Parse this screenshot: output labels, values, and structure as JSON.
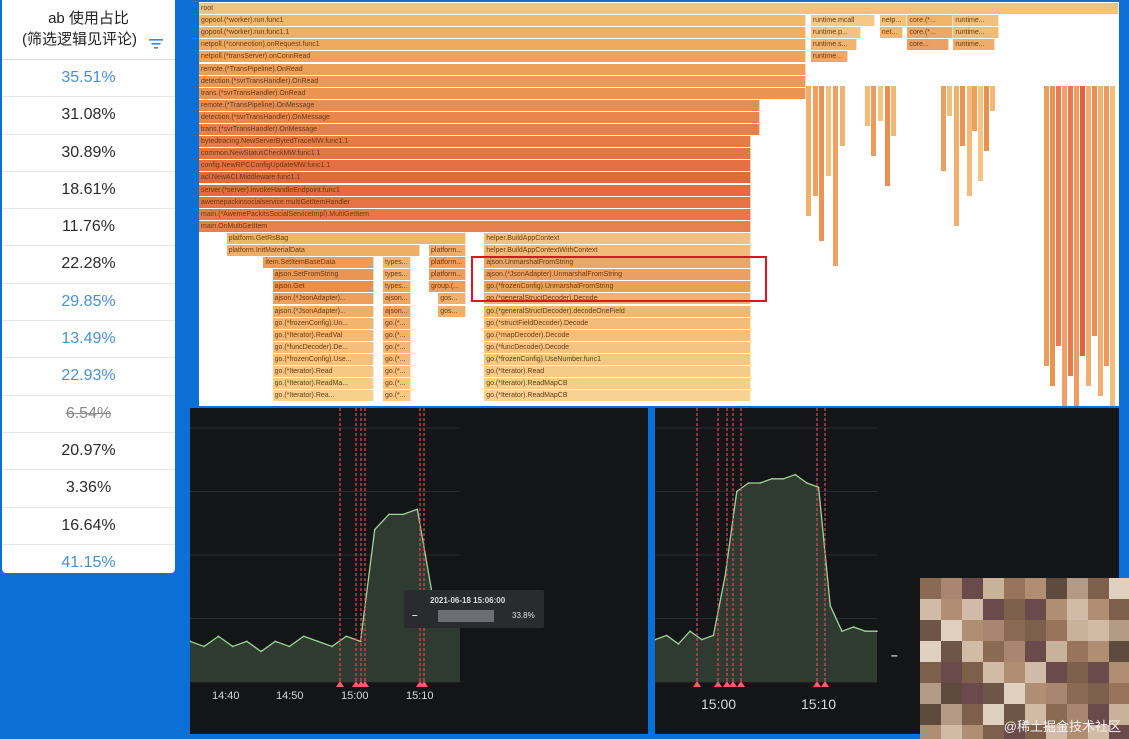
{
  "table": {
    "header_line1": "ab 使用占比",
    "header_line2": "(筛选逻辑见评论)",
    "rows": [
      {
        "value": "35.51%",
        "style": "link"
      },
      {
        "value": "31.08%",
        "style": "normal"
      },
      {
        "value": "30.89%",
        "style": "normal"
      },
      {
        "value": "18.61%",
        "style": "normal"
      },
      {
        "value": "11.76%",
        "style": "normal"
      },
      {
        "value": "22.28%",
        "style": "normal"
      },
      {
        "value": "29.85%",
        "style": "link"
      },
      {
        "value": "13.49%",
        "style": "link"
      },
      {
        "value": "22.93%",
        "style": "link"
      },
      {
        "value": "6.54%",
        "style": "strike"
      },
      {
        "value": "20.97%",
        "style": "normal"
      },
      {
        "value": "3.36%",
        "style": "normal"
      },
      {
        "value": "16.64%",
        "style": "normal"
      },
      {
        "value": "41.15%",
        "style": "link"
      }
    ]
  },
  "flamegraph": {
    "frames": [
      {
        "label": "root",
        "depth": 0,
        "start": 0.0,
        "end": 1.0,
        "color": "#f3c37a"
      },
      {
        "label": "gopool.(*worker).run.func1",
        "depth": 1,
        "start": 0.0,
        "end": 0.66,
        "color": "#f0b86a"
      },
      {
        "label": "runtime.mcall",
        "depth": 1,
        "start": 0.665,
        "end": 0.735,
        "color": "#f4c886"
      },
      {
        "label": "netp...",
        "depth": 1,
        "start": 0.74,
        "end": 0.77,
        "color": "#f2c17a"
      },
      {
        "label": "core.(*...",
        "depth": 1,
        "start": 0.77,
        "end": 0.82,
        "color": "#f0b36a"
      },
      {
        "label": "runtime...",
        "depth": 1,
        "start": 0.82,
        "end": 0.87,
        "color": "#f3c07c"
      },
      {
        "label": "gopool.(*worker).run.func1.1",
        "depth": 2,
        "start": 0.0,
        "end": 0.66,
        "color": "#efb064"
      },
      {
        "label": "runtime.p...",
        "depth": 2,
        "start": 0.665,
        "end": 0.72,
        "color": "#f4c37e"
      },
      {
        "label": "net...",
        "depth": 2,
        "start": 0.74,
        "end": 0.765,
        "color": "#f0b774"
      },
      {
        "label": "core.(*...",
        "depth": 2,
        "start": 0.77,
        "end": 0.82,
        "color": "#eea866"
      },
      {
        "label": "runtime...",
        "depth": 2,
        "start": 0.82,
        "end": 0.87,
        "color": "#f1bb74"
      },
      {
        "label": "netpoll.(*connection).onRequest.func1",
        "depth": 3,
        "start": 0.0,
        "end": 0.66,
        "color": "#eeab60"
      },
      {
        "label": "runtime.s...",
        "depth": 3,
        "start": 0.665,
        "end": 0.715,
        "color": "#f0b470"
      },
      {
        "label": "core...",
        "depth": 3,
        "start": 0.77,
        "end": 0.815,
        "color": "#eca063"
      },
      {
        "label": "runtime...",
        "depth": 3,
        "start": 0.82,
        "end": 0.865,
        "color": "#efad6b"
      },
      {
        "label": "netpoll.(*transServer).onConnRead",
        "depth": 4,
        "start": 0.0,
        "end": 0.66,
        "color": "#eda55c"
      },
      {
        "label": "runtime...",
        "depth": 4,
        "start": 0.665,
        "end": 0.705,
        "color": "#eea66a"
      },
      {
        "label": "remote.(*TransPipeline).OnRead",
        "depth": 5,
        "start": 0.0,
        "end": 0.66,
        "color": "#ec9f58"
      },
      {
        "label": "detection.(*svrTransHandler).OnRead",
        "depth": 6,
        "start": 0.0,
        "end": 0.66,
        "color": "#eb9955"
      },
      {
        "label": "trans.(*svrTransHandler).OnRead",
        "depth": 7,
        "start": 0.0,
        "end": 0.66,
        "color": "#ea9352"
      },
      {
        "label": "remote.(*TransPipeline).OnMessage",
        "depth": 8,
        "start": 0.0,
        "end": 0.61,
        "color": "#e98d4f"
      },
      {
        "label": "detection.(*svrTransHandler).OnMessage",
        "depth": 9,
        "start": 0.0,
        "end": 0.61,
        "color": "#e8874c"
      },
      {
        "label": "trans.(*svrTransHandler).OnMessage",
        "depth": 10,
        "start": 0.0,
        "end": 0.61,
        "color": "#e78149"
      },
      {
        "label": "bytedtracing.NewServerBytedTraceMW.func1.1",
        "depth": 11,
        "start": 0.0,
        "end": 0.6,
        "color": "#e67b46"
      },
      {
        "label": "common.NewStatusCheckMW.func1.1",
        "depth": 12,
        "start": 0.0,
        "end": 0.6,
        "color": "#e57543"
      },
      {
        "label": "config.NewRPCConfigUpdateMW.func1.1",
        "depth": 13,
        "start": 0.0,
        "end": 0.6,
        "color": "#e46f40"
      },
      {
        "label": "acl.NewACLMiddleware.func1.1",
        "depth": 14,
        "start": 0.0,
        "end": 0.6,
        "color": "#e3693d"
      },
      {
        "label": "server.(*server).invokeHandleEndpoint.func1",
        "depth": 15,
        "start": 0.0,
        "end": 0.6,
        "color": "#e46d40"
      },
      {
        "label": "awemepackinsocialservice.multiGetItemHandler",
        "depth": 16,
        "start": 0.0,
        "end": 0.6,
        "color": "#e57345"
      },
      {
        "label": "main.(*AwemePackItsSocialServiceImpl).MultiGetItem",
        "depth": 17,
        "start": 0.0,
        "end": 0.6,
        "color": "#e67948"
      },
      {
        "label": "main.OnMultiGetItem",
        "depth": 18,
        "start": 0.0,
        "end": 0.6,
        "color": "#e7804c"
      },
      {
        "label": "platform.GetRsBag",
        "depth": 19,
        "start": 0.03,
        "end": 0.29,
        "color": "#f0b56c"
      },
      {
        "label": "helper.BuildAppContext",
        "depth": 19,
        "start": 0.31,
        "end": 0.6,
        "color": "#f2c080"
      },
      {
        "label": "platform.InitMaterialData",
        "depth": 20,
        "start": 0.03,
        "end": 0.24,
        "color": "#efae66"
      },
      {
        "label": "platform...",
        "depth": 20,
        "start": 0.25,
        "end": 0.29,
        "color": "#eeac68"
      },
      {
        "label": "helper.BuildAppContextWithContext",
        "depth": 20,
        "start": 0.31,
        "end": 0.6,
        "color": "#f1bb7a"
      },
      {
        "label": "item.SetItemBaseData",
        "depth": 21,
        "start": 0.07,
        "end": 0.19,
        "color": "#eb9c5c"
      },
      {
        "label": "types...",
        "depth": 21,
        "start": 0.2,
        "end": 0.23,
        "color": "#f0b472"
      },
      {
        "label": "platform...",
        "depth": 21,
        "start": 0.25,
        "end": 0.29,
        "color": "#ee9f60"
      },
      {
        "label": "ajson.UnmarshalFromString",
        "depth": 21,
        "start": 0.31,
        "end": 0.6,
        "color": "#eda568"
      },
      {
        "label": "ajson.SetFromString",
        "depth": 22,
        "start": 0.08,
        "end": 0.19,
        "color": "#e99655"
      },
      {
        "label": "types...",
        "depth": 22,
        "start": 0.2,
        "end": 0.23,
        "color": "#efae6c"
      },
      {
        "label": "platform...",
        "depth": 22,
        "start": 0.25,
        "end": 0.29,
        "color": "#ed9d5e"
      },
      {
        "label": "ajson.(*JsonAdapter).UnmarshalFromString",
        "depth": 22,
        "start": 0.31,
        "end": 0.6,
        "color": "#ec9f62"
      },
      {
        "label": "ajson.Get",
        "depth": 23,
        "start": 0.08,
        "end": 0.19,
        "color": "#e8904f"
      },
      {
        "label": "types...",
        "depth": 23,
        "start": 0.2,
        "end": 0.23,
        "color": "#eea866"
      },
      {
        "label": "group.(...",
        "depth": 23,
        "start": 0.25,
        "end": 0.29,
        "color": "#ed9d5c"
      },
      {
        "label": "go.(*frozenConfig).UnmarshalFromString",
        "depth": 23,
        "start": 0.31,
        "end": 0.6,
        "color": "#eba15e"
      },
      {
        "label": "ajson.(*JsonAdapter)...",
        "depth": 24,
        "start": 0.08,
        "end": 0.19,
        "color": "#ef9f5c"
      },
      {
        "label": "ajson...",
        "depth": 24,
        "start": 0.2,
        "end": 0.23,
        "color": "#eda664"
      },
      {
        "label": "gos...",
        "depth": 24,
        "start": 0.26,
        "end": 0.29,
        "color": "#efb070"
      },
      {
        "label": "go.(*generalStructDecoder).Decode",
        "depth": 24,
        "start": 0.31,
        "end": 0.6,
        "color": "#f0b36e"
      },
      {
        "label": "ajson.(*JsonAdapter)...",
        "depth": 25,
        "start": 0.08,
        "end": 0.19,
        "color": "#f0ae6a"
      },
      {
        "label": "ajson...",
        "depth": 25,
        "start": 0.2,
        "end": 0.23,
        "color": "#eda464"
      },
      {
        "label": "gos...",
        "depth": 25,
        "start": 0.26,
        "end": 0.29,
        "color": "#efaf6e"
      },
      {
        "label": "go.(*generalStructDecoder).decodeOneField",
        "depth": 25,
        "start": 0.31,
        "end": 0.6,
        "color": "#f1b872"
      },
      {
        "label": "go.(*frozenConfig).Un...",
        "depth": 26,
        "start": 0.08,
        "end": 0.19,
        "color": "#f1b56e"
      },
      {
        "label": "go.(*...",
        "depth": 26,
        "start": 0.2,
        "end": 0.23,
        "color": "#efad6c"
      },
      {
        "label": "go.(*structFieldDecoder).Decode",
        "depth": 26,
        "start": 0.31,
        "end": 0.6,
        "color": "#f2bd78"
      },
      {
        "label": "go.(*Iterator).ReadVal",
        "depth": 27,
        "start": 0.08,
        "end": 0.19,
        "color": "#f2ba74"
      },
      {
        "label": "go.(*...",
        "depth": 27,
        "start": 0.2,
        "end": 0.23,
        "color": "#f0b270"
      },
      {
        "label": "go.(*mapDecoder).Decode",
        "depth": 27,
        "start": 0.31,
        "end": 0.6,
        "color": "#f3c07c"
      },
      {
        "label": "go.(*funcDecoder).De...",
        "depth": 28,
        "start": 0.08,
        "end": 0.19,
        "color": "#f3bf7a"
      },
      {
        "label": "go.(*...",
        "depth": 28,
        "start": 0.2,
        "end": 0.23,
        "color": "#f1b774"
      },
      {
        "label": "go.(*funcDecoder).Decode",
        "depth": 28,
        "start": 0.31,
        "end": 0.6,
        "color": "#f4c482"
      },
      {
        "label": "go.(*frozenConfig).Use...",
        "depth": 29,
        "start": 0.08,
        "end": 0.19,
        "color": "#f4c47e"
      },
      {
        "label": "go.(*...",
        "depth": 29,
        "start": 0.2,
        "end": 0.23,
        "color": "#f2bc78"
      },
      {
        "label": "go.(*frozenConfig).UseNumber.func1",
        "depth": 29,
        "start": 0.31,
        "end": 0.6,
        "color": "#f4c886"
      },
      {
        "label": "go.(*Iterator).Read",
        "depth": 30,
        "start": 0.08,
        "end": 0.19,
        "color": "#f5c883"
      },
      {
        "label": "go.(*...",
        "depth": 30,
        "start": 0.2,
        "end": 0.23,
        "color": "#f3c17c"
      },
      {
        "label": "go.(*Iterator).Read",
        "depth": 30,
        "start": 0.31,
        "end": 0.6,
        "color": "#f5cb8a"
      },
      {
        "label": "go.(*Iterator).ReadMa...",
        "depth": 31,
        "start": 0.08,
        "end": 0.19,
        "color": "#f6cc88"
      },
      {
        "label": "go.(*...",
        "depth": 31,
        "start": 0.2,
        "end": 0.23,
        "color": "#f4c480"
      },
      {
        "label": "go.(*Iterator).ReadMapCB",
        "depth": 31,
        "start": 0.31,
        "end": 0.6,
        "color": "#f6ce8e"
      },
      {
        "label": "go.(*Iterator).Rea...",
        "depth": 32,
        "start": 0.08,
        "end": 0.19,
        "color": "#f7d08c"
      },
      {
        "label": "go.(*...",
        "depth": 32,
        "start": 0.2,
        "end": 0.23,
        "color": "#f5c884"
      },
      {
        "label": "go.(*Iterator).ReadMapCB",
        "depth": 32,
        "start": 0.31,
        "end": 0.6,
        "color": "#f7d292"
      }
    ]
  },
  "chart_left": {
    "x_ticks": [
      "14:40",
      "14:50",
      "15:00",
      "15:10"
    ],
    "tooltip_time": "2021-06-18 15:06:00",
    "tooltip_dash": "–",
    "tooltip_value": "33.8%"
  },
  "chart_right": {
    "x_ticks": [
      "15:00",
      "15:10"
    ],
    "legend_dash": "–"
  },
  "watermark": "@稀土掘金技术社区",
  "chart_data": [
    {
      "type": "area",
      "x": [
        "14:35",
        "14:37",
        "14:39",
        "14:41",
        "14:43",
        "14:45",
        "14:47",
        "14:49",
        "14:51",
        "14:53",
        "14:55",
        "14:57",
        "14:59",
        "15:01",
        "15:03",
        "15:05",
        "15:07",
        "15:09",
        "15:11",
        "15:13"
      ],
      "series": [
        {
          "values": [
            8,
            7,
            9,
            7,
            8,
            6,
            8,
            7,
            9,
            8,
            7,
            9,
            8,
            30,
            33,
            33,
            34,
            18,
            17,
            16
          ]
        }
      ],
      "xlabel": "",
      "ylabel": "",
      "ylim": [
        0,
        50
      ]
    },
    {
      "type": "area",
      "x": [
        "14:55",
        "14:56",
        "14:57",
        "14:58",
        "14:59",
        "15:00",
        "15:01",
        "15:02",
        "15:03",
        "15:04",
        "15:05",
        "15:06",
        "15:07",
        "15:08",
        "15:09",
        "15:10",
        "15:11",
        "15:12",
        "15:13",
        "15:14"
      ],
      "series": [
        {
          "values": [
            10,
            11,
            9,
            12,
            10,
            11,
            25,
            45,
            47,
            47,
            48,
            48,
            49,
            47,
            46,
            18,
            12,
            13,
            12,
            12
          ]
        }
      ],
      "xlabel": "",
      "ylabel": "",
      "ylim": [
        0,
        60
      ]
    }
  ]
}
